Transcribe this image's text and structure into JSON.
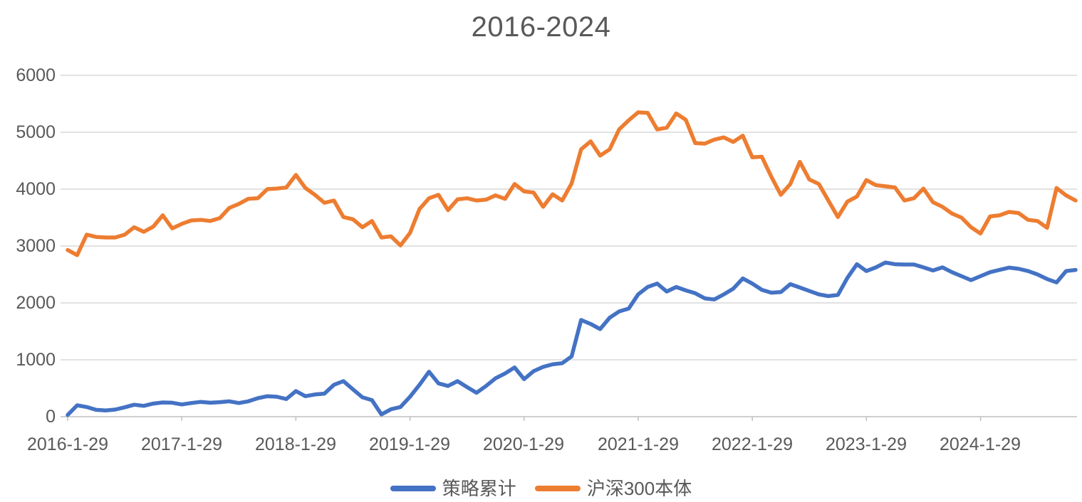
{
  "title": "2016-2024",
  "colors": {
    "strategy_blue": "#4472C4",
    "index_orange": "#ED7D31",
    "gridline": "#D9D9D9",
    "axis_line": "#BFBFBF",
    "text_gray": "#595959",
    "background": "#FFFFFF"
  },
  "legend": {
    "position": "bottom-center",
    "items": [
      {
        "label": "策略累计",
        "color": "#4472C4"
      },
      {
        "label": "沪深300本体",
        "color": "#ED7D31"
      }
    ]
  },
  "chart_data": {
    "type": "line",
    "title": "2016-2024",
    "xlabel": "",
    "ylabel": "",
    "ylim": [
      0,
      6000
    ],
    "y_ticks": [
      0,
      1000,
      2000,
      3000,
      4000,
      5000,
      6000
    ],
    "grid": "horizontal",
    "legend_position": "bottom",
    "x_tick_labels": [
      "2016-1-29",
      "2017-1-29",
      "2018-1-29",
      "2019-1-29",
      "2020-1-29",
      "2021-1-29",
      "2022-1-29",
      "2023-1-29",
      "2024-1-29"
    ],
    "x_tick_every_n_points": 12,
    "x_months": [
      "2016-01",
      "2016-02",
      "2016-03",
      "2016-04",
      "2016-05",
      "2016-06",
      "2016-07",
      "2016-08",
      "2016-09",
      "2016-10",
      "2016-11",
      "2016-12",
      "2017-01",
      "2017-02",
      "2017-03",
      "2017-04",
      "2017-05",
      "2017-06",
      "2017-07",
      "2017-08",
      "2017-09",
      "2017-10",
      "2017-11",
      "2017-12",
      "2018-01",
      "2018-02",
      "2018-03",
      "2018-04",
      "2018-05",
      "2018-06",
      "2018-07",
      "2018-08",
      "2018-09",
      "2018-10",
      "2018-11",
      "2018-12",
      "2019-01",
      "2019-02",
      "2019-03",
      "2019-04",
      "2019-05",
      "2019-06",
      "2019-07",
      "2019-08",
      "2019-09",
      "2019-10",
      "2019-11",
      "2019-12",
      "2020-01",
      "2020-02",
      "2020-03",
      "2020-04",
      "2020-05",
      "2020-06",
      "2020-07",
      "2020-08",
      "2020-09",
      "2020-10",
      "2020-11",
      "2020-12",
      "2021-01",
      "2021-02",
      "2021-03",
      "2021-04",
      "2021-05",
      "2021-06",
      "2021-07",
      "2021-08",
      "2021-09",
      "2021-10",
      "2021-11",
      "2021-12",
      "2022-01",
      "2022-02",
      "2022-03",
      "2022-04",
      "2022-05",
      "2022-06",
      "2022-07",
      "2022-08",
      "2022-09",
      "2022-10",
      "2022-11",
      "2022-12",
      "2023-01",
      "2023-02",
      "2023-03",
      "2023-04",
      "2023-05",
      "2023-06",
      "2023-07",
      "2023-08",
      "2023-09",
      "2023-10",
      "2023-11",
      "2023-12",
      "2024-01",
      "2024-02",
      "2024-03",
      "2024-04",
      "2024-05",
      "2024-06",
      "2024-07",
      "2024-08",
      "2024-09",
      "2024-10",
      "2024-11"
    ],
    "series": [
      {
        "name": "策略累计",
        "color": "#4472C4",
        "values": [
          30,
          200,
          170,
          120,
          110,
          125,
          165,
          210,
          190,
          230,
          250,
          245,
          215,
          240,
          260,
          245,
          255,
          270,
          240,
          270,
          325,
          360,
          350,
          310,
          450,
          360,
          390,
          405,
          560,
          625,
          480,
          340,
          290,
          40,
          130,
          170,
          350,
          560,
          790,
          585,
          540,
          625,
          520,
          420,
          540,
          675,
          760,
          865,
          660,
          800,
          875,
          920,
          940,
          1060,
          1700,
          1630,
          1540,
          1740,
          1850,
          1900,
          2150,
          2280,
          2340,
          2200,
          2280,
          2220,
          2170,
          2080,
          2060,
          2150,
          2250,
          2430,
          2340,
          2230,
          2180,
          2190,
          2330,
          2270,
          2210,
          2150,
          2120,
          2140,
          2440,
          2680,
          2560,
          2625,
          2710,
          2680,
          2675,
          2675,
          2625,
          2570,
          2625,
          2540,
          2470,
          2400,
          2470,
          2540,
          2580,
          2620,
          2600,
          2560,
          2500,
          2420,
          2360,
          2560,
          2580
        ]
      },
      {
        "name": "沪深300本体",
        "color": "#ED7D31",
        "values": [
          2930,
          2840,
          3200,
          3160,
          3150,
          3150,
          3200,
          3330,
          3250,
          3340,
          3540,
          3310,
          3390,
          3450,
          3460,
          3440,
          3490,
          3670,
          3740,
          3830,
          3840,
          4000,
          4010,
          4030,
          4250,
          4020,
          3900,
          3760,
          3800,
          3510,
          3470,
          3330,
          3440,
          3150,
          3170,
          3010,
          3230,
          3650,
          3840,
          3900,
          3630,
          3820,
          3840,
          3800,
          3815,
          3890,
          3830,
          4090,
          3960,
          3940,
          3690,
          3910,
          3800,
          4100,
          4700,
          4840,
          4590,
          4700,
          5050,
          5210,
          5350,
          5340,
          5050,
          5080,
          5330,
          5220,
          4810,
          4800,
          4870,
          4910,
          4830,
          4940,
          4560,
          4570,
          4220,
          3900,
          4090,
          4480,
          4170,
          4090,
          3800,
          3510,
          3780,
          3870,
          4160,
          4070,
          4050,
          4030,
          3800,
          3840,
          4010,
          3770,
          3690,
          3570,
          3500,
          3330,
          3220,
          3520,
          3540,
          3600,
          3580,
          3460,
          3440,
          3320,
          4020,
          3890,
          3800
        ]
      }
    ]
  }
}
